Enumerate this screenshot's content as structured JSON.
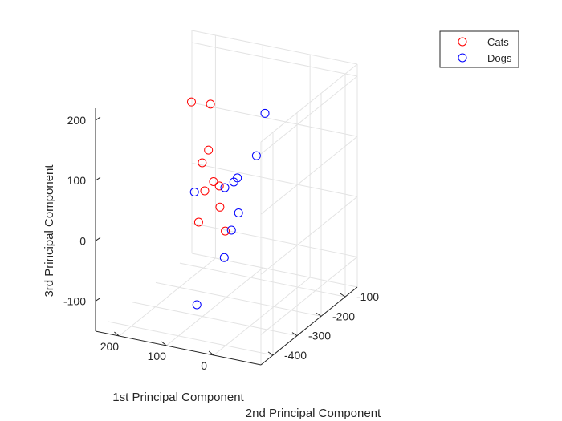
{
  "chart_data": {
    "type": "scatter",
    "title": "",
    "xlabel": "1st Principal Component",
    "ylabel": "2nd Principal Component",
    "zlabel": "3rd Principal Component",
    "xlim": [
      -100,
      250
    ],
    "ylim": [
      -450,
      -50
    ],
    "zlim": [
      -150,
      220
    ],
    "x_ticks": [
      0,
      100,
      200
    ],
    "y_ticks": [
      -100,
      -200,
      -300,
      -400
    ],
    "z_ticks": [
      200,
      100,
      0,
      -100
    ],
    "grid": true,
    "legend_position": "top-right",
    "series": [
      {
        "name": "Cats",
        "color": "#ff0000",
        "marker": "circle-open",
        "points": [
          {
            "x": 120,
            "y": -228,
            "z": 176
          },
          {
            "x": 178,
            "y": -193,
            "z": 159
          },
          {
            "x": 89,
            "y": -297,
            "z": 127
          },
          {
            "x": 114,
            "y": -227,
            "z": 48
          },
          {
            "x": 165,
            "y": -174,
            "z": 54
          },
          {
            "x": 90,
            "y": -250,
            "z": 52
          },
          {
            "x": 126,
            "y": -240,
            "z": 35
          },
          {
            "x": 75,
            "y": -277,
            "z": 28
          },
          {
            "x": 120,
            "y": -277,
            "z": -4
          },
          {
            "x": 55,
            "y": -294,
            "z": -3
          }
        ]
      },
      {
        "name": "Dogs",
        "color": "#0000ff",
        "marker": "circle-open",
        "points": [
          {
            "x": -28,
            "y": -292,
            "z": 205
          },
          {
            "x": -14,
            "y": -300,
            "z": 135
          },
          {
            "x": 12,
            "y": -328,
            "z": 103
          },
          {
            "x": 22,
            "y": -323,
            "z": 93
          },
          {
            "x": 33,
            "y": -339,
            "z": 87
          },
          {
            "x": -14,
            "y": -374,
            "z": 64
          },
          {
            "x": 84,
            "y": -365,
            "z": 80
          },
          {
            "x": -33,
            "y": -441,
            "z": 60
          },
          {
            "x": -28,
            "y": -461,
            "z": 20
          },
          {
            "x": 61,
            "y": -400,
            "z": -92
          }
        ]
      }
    ]
  }
}
